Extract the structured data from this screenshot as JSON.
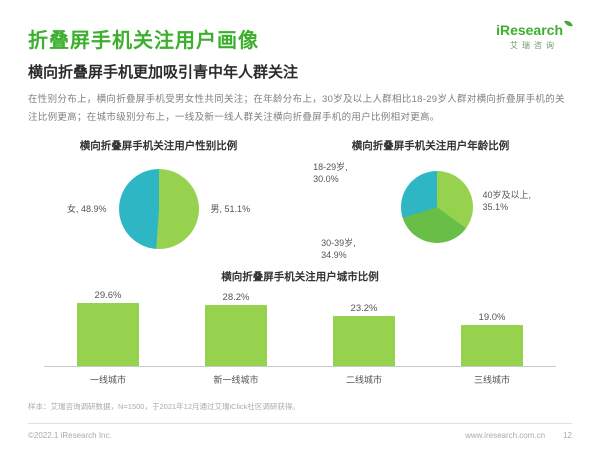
{
  "page": {
    "title": "折叠屏手机关注用户画像",
    "subtitle": "横向折叠屏手机更加吸引青中年人群关注",
    "body_text": "在性别分布上，横向折叠屏手机受男女性共同关注；在年龄分布上，30岁及以上人群相比18-29岁人群对横向折叠屏手机的关注比例更高；在城市级别分布上，一线及新一线人群关注横向折叠屏手机的用户比例相对更高。",
    "page_number": "12"
  },
  "logo": {
    "name": "iResearch",
    "subtitle": "艾瑞咨询"
  },
  "footer": {
    "source": "样本：艾瑞咨询调研数据，N=1500，于2021年12月通过艾瑞iClick社区调研获得。",
    "copyright": "©2022.1 iResearch Inc.",
    "website": "www.iresearch.com.cn"
  },
  "colors": {
    "brand_green": "#3CAF2C",
    "light_green": "#97D24E",
    "mid_green": "#69BE48",
    "teal": "#2FB6C5"
  },
  "chart_data": [
    {
      "type": "pie",
      "title": "横向折叠屏手机关注用户性别比例",
      "slices": [
        {
          "label": "男",
          "value": 51.1,
          "display": "男, 51.1%",
          "color": "#97D24E"
        },
        {
          "label": "女",
          "value": 48.9,
          "display": "女, 48.9%",
          "color": "#2FB6C5"
        }
      ]
    },
    {
      "type": "pie",
      "title": "横向折叠屏手机关注用户年龄比例",
      "slices": [
        {
          "label": "40岁及以上",
          "value": 35.1,
          "lines": [
            "40岁及以上,",
            "35.1%"
          ],
          "color": "#97D24E"
        },
        {
          "label": "30-39岁",
          "value": 34.9,
          "lines": [
            "30-39岁,",
            "34.9%"
          ],
          "color": "#69BE48"
        },
        {
          "label": "18-29岁",
          "value": 30.0,
          "lines": [
            "18-29岁,",
            "30.0%"
          ],
          "color": "#2FB6C5"
        }
      ]
    },
    {
      "type": "bar",
      "title": "横向折叠屏手机关注用户城市比例",
      "categories": [
        "一线城市",
        "新一线城市",
        "二线城市",
        "三线城市"
      ],
      "values": [
        29.6,
        28.2,
        23.2,
        19.0
      ],
      "value_labels": [
        "29.6%",
        "28.2%",
        "23.2%",
        "19.0%"
      ],
      "bar_color": "#97D24E",
      "ylim": [
        0,
        35
      ]
    }
  ]
}
